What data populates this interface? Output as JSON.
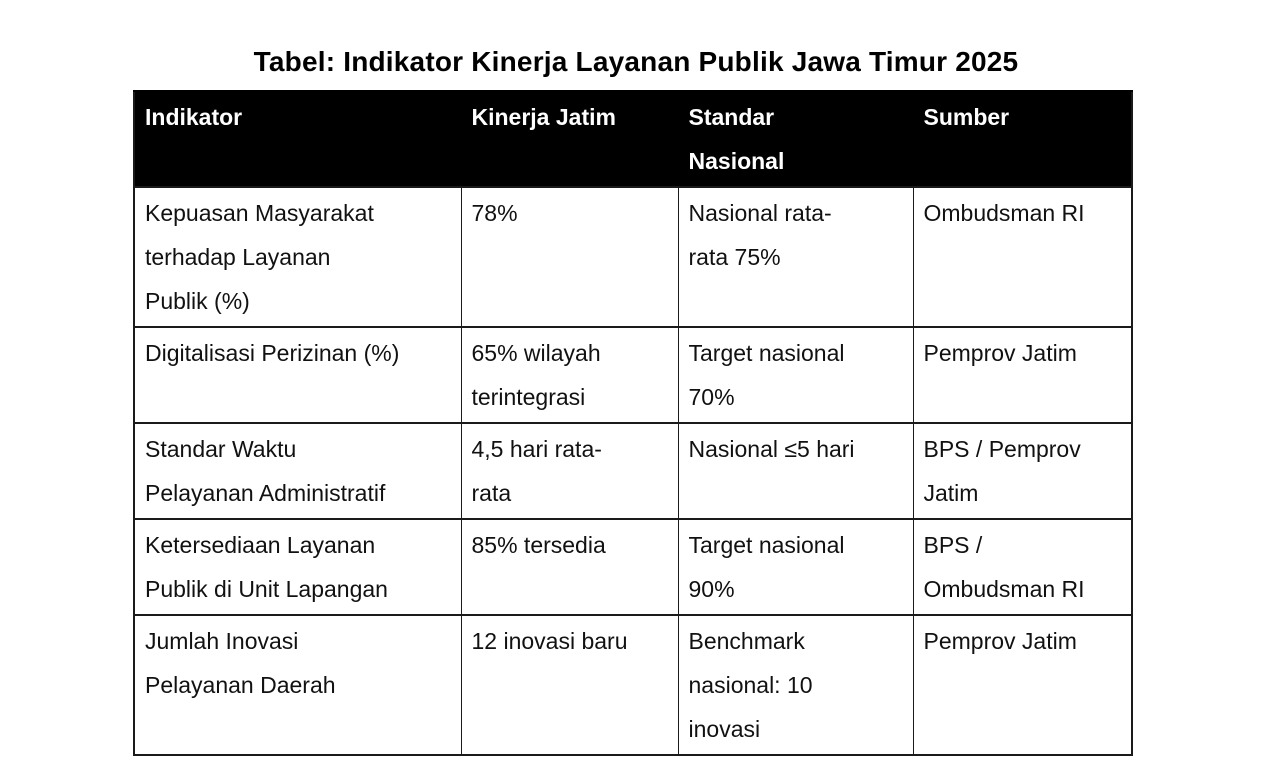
{
  "title": "Tabel: Indikator Kinerja Layanan Publik Jawa Timur 2025",
  "colors": {
    "page_bg": "#ffffff",
    "header_bg": "#000000",
    "header_text": "#ffffff",
    "border": "#1a1a1a",
    "cell_text": "#111111"
  },
  "table": {
    "headers": [
      "Indikator",
      "Kinerja Jatim",
      "Standar\nNasional",
      "Sumber"
    ],
    "rows": [
      [
        "Kepuasan Masyarakat\nterhadap Layanan\nPublik (%)",
        "78%",
        "Nasional rata-\nrata 75%",
        "Ombudsman RI"
      ],
      [
        "Digitalisasi Perizinan (%)",
        "65% wilayah\nterintegrasi",
        "Target nasional\n70%",
        "Pemprov Jatim"
      ],
      [
        "Standar Waktu\nPelayanan Administratif",
        "4,5 hari rata-\nrata",
        "Nasional ≤5 hari",
        "BPS / Pemprov\nJatim"
      ],
      [
        "Ketersediaan Layanan\nPublik di Unit Lapangan",
        "85% tersedia",
        "Target nasional\n90%",
        "BPS /\nOmbudsman RI"
      ],
      [
        "Jumlah Inovasi\nPelayanan Daerah",
        "12 inovasi baru",
        "Benchmark\nnasional: 10\ninovasi",
        "Pemprov Jatim"
      ]
    ]
  }
}
